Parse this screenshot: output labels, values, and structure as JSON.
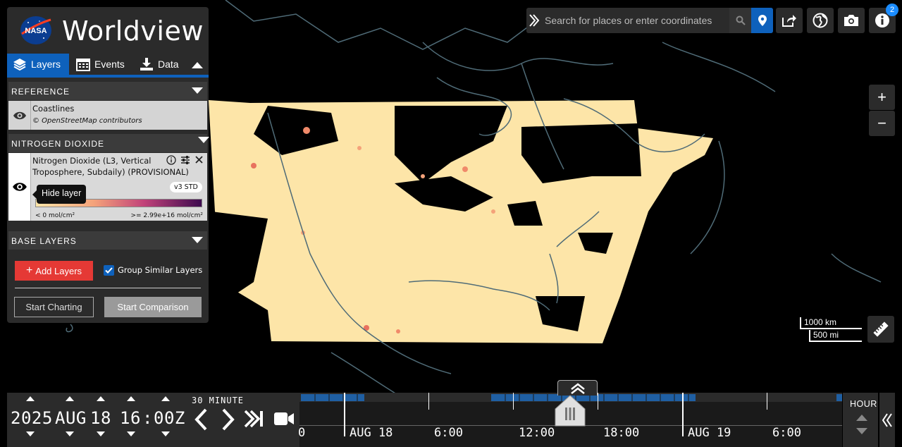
{
  "app": {
    "logo_text": "NASA",
    "title": "Worldview"
  },
  "tabs": [
    {
      "label": "Layers",
      "icon": "layers-icon",
      "active": true
    },
    {
      "label": "Events",
      "icon": "calendar-icon",
      "active": false
    },
    {
      "label": "Data",
      "icon": "download-icon",
      "active": false
    }
  ],
  "sections": {
    "reference": {
      "title": "REFERENCE"
    },
    "nitrogen": {
      "title": "NITROGEN DIOXIDE"
    },
    "base": {
      "title": "BASE LAYERS"
    }
  },
  "layers": {
    "coastlines": {
      "name": "Coastlines",
      "attribution": "© OpenStreetMap contributors"
    },
    "no2": {
      "name_line1": "Nitrogen Dioxide (L3, Vertical",
      "name_line2": "Troposphere, Subdaily) (PROVISIONAL)",
      "version_badge": "v3 STD",
      "legend_min": "< 0 mol/cm²",
      "legend_max": ">= 2.99e+16 mol/cm²",
      "tooltip": "Hide layer"
    }
  },
  "actions": {
    "add_layers": "Add Layers",
    "group_similar": "Group Similar Layers",
    "group_similar_checked": true,
    "start_charting": "Start Charting",
    "start_comparison": "Start Comparison"
  },
  "search": {
    "placeholder": "Search for places or enter coordinates"
  },
  "toolbar": {
    "info_badge_count": "2"
  },
  "map_controls": {
    "zoom_in": "+",
    "zoom_out": "−",
    "scale_km": "1000 km",
    "scale_mi": "500 mi"
  },
  "date": {
    "year": "2025",
    "month": "AUG",
    "day": "18",
    "hour": "16",
    "colon": ":",
    "minute": "00Z",
    "interval": "30 MINUTE"
  },
  "timeline": {
    "labels": [
      "0",
      "AUG 18",
      "6:00",
      "12:00",
      "18:00",
      "AUG 19",
      "6:00"
    ],
    "zoom_level": "HOUR"
  },
  "colors": {
    "accent": "#0e61bc",
    "add_button": "#e53935",
    "panel": "#2b2b2b"
  }
}
